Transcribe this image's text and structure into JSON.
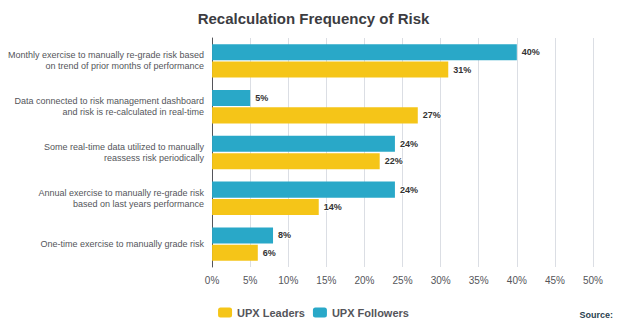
{
  "chart_data": {
    "type": "bar",
    "orientation": "horizontal",
    "title": "Recalculation Frequency of Risk",
    "categories": [
      "One-time exercise to manually grade risk",
      "Annual exercise to manually re-grade risk\nbased on last years performance",
      "Some real-time data utilized to manually\nreassess risk periodically",
      "Data connected to risk management dashboard\nand risk is re-calculated in real-time",
      "Monthly exercise to manually re-grade risk based\non trend of prior months of performance"
    ],
    "series": [
      {
        "name": "UPX Leaders",
        "color": "#F5C518",
        "values": [
          6,
          14,
          22,
          27,
          31
        ],
        "value_labels": [
          "6%",
          "14%",
          "22%",
          "27%",
          "31%"
        ]
      },
      {
        "name": "UPX Followers",
        "color": "#29A8C8",
        "values": [
          8,
          24,
          24,
          5,
          40
        ],
        "value_labels": [
          "8%",
          "24%",
          "24%",
          "5%",
          "40%"
        ]
      }
    ],
    "xlim": [
      0,
      50
    ],
    "xticks": [
      {
        "value": 0,
        "label": "0%"
      },
      {
        "value": 5,
        "label": "5%"
      },
      {
        "value": 10,
        "label": "10%"
      },
      {
        "value": 15,
        "label": "15%"
      },
      {
        "value": 20,
        "label": "20%"
      },
      {
        "value": 25,
        "label": "25%"
      },
      {
        "value": 30,
        "label": "30%"
      },
      {
        "value": 35,
        "label": "35%"
      },
      {
        "value": 40,
        "label": "40%"
      },
      {
        "value": 45,
        "label": "45%"
      },
      {
        "value": 50,
        "label": "50%"
      }
    ],
    "grid": true,
    "legend": "bottom",
    "data_labels": true,
    "annotations": [
      "Source:"
    ]
  }
}
